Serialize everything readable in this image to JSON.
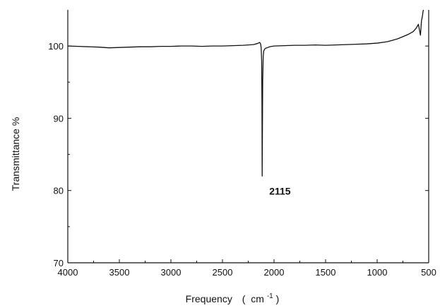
{
  "chart_data": {
    "type": "line",
    "title": "",
    "xlabel": "Frequency",
    "xlabel_unit_base": "cm",
    "xlabel_unit_exp": "-1",
    "ylabel": "Transmittance %",
    "xlim": [
      4000,
      500
    ],
    "ylim": [
      70,
      105
    ],
    "x_reversed": true,
    "x_ticks": [
      4000,
      3500,
      3000,
      2500,
      2000,
      1500,
      1000,
      500
    ],
    "y_ticks": [
      70,
      80,
      90,
      100
    ],
    "grid": false,
    "legend": "none",
    "line_color": "#111111",
    "series": [
      {
        "x": [
          4000,
          3900,
          3800,
          3700,
          3600,
          3500,
          3400,
          3300,
          3200,
          3100,
          3000,
          2900,
          2800,
          2700,
          2600,
          2500,
          2400,
          2300,
          2200,
          2160,
          2140,
          2130,
          2125,
          2120,
          2117,
          2115,
          2113,
          2110,
          2105,
          2100,
          2090,
          2080,
          2060,
          2040,
          2000,
          1900,
          1800,
          1700,
          1600,
          1500,
          1400,
          1300,
          1200,
          1100,
          1000,
          900,
          850,
          800,
          750,
          700,
          650,
          620,
          600,
          580,
          570,
          560,
          555,
          550
        ],
        "y": [
          100.0,
          99.95,
          99.9,
          99.85,
          99.75,
          99.8,
          99.85,
          99.9,
          99.9,
          99.95,
          99.95,
          100.0,
          100.0,
          99.95,
          100.0,
          100.0,
          100.05,
          100.1,
          100.2,
          100.35,
          100.5,
          100.3,
          99.8,
          98.0,
          92.0,
          82.0,
          87.0,
          95.0,
          98.5,
          99.3,
          99.6,
          99.7,
          99.8,
          99.9,
          100.0,
          100.05,
          100.1,
          100.1,
          100.15,
          100.1,
          100.15,
          100.2,
          100.25,
          100.3,
          100.4,
          100.6,
          100.8,
          101.0,
          101.3,
          101.6,
          102.0,
          102.5,
          103.0,
          101.5,
          103.5,
          104.2,
          104.8,
          105.0
        ]
      }
    ],
    "annotations": [
      {
        "text": "2115",
        "x": 2115,
        "y": 82.0
      }
    ]
  }
}
